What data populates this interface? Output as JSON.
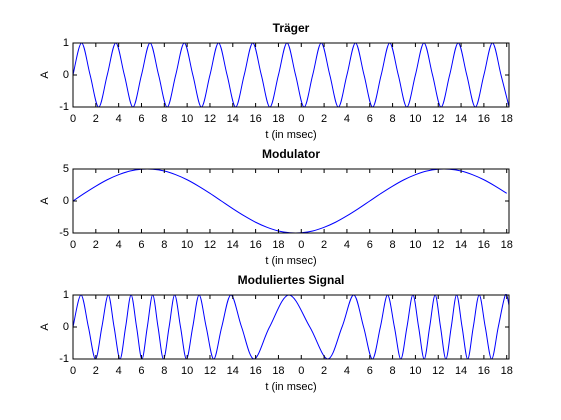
{
  "chart_data": [
    {
      "type": "line",
      "title": "Träger",
      "xlabel": "t (in msec)",
      "ylabel": "A",
      "color": "#0000ff",
      "x": [
        0,
        0.75,
        1.5,
        2.25,
        3,
        3.75,
        4.5,
        5.25,
        6,
        6.75,
        7.5,
        8.25,
        9,
        9.75,
        10.5,
        11.25,
        12,
        12.75,
        13.5,
        14.25,
        15,
        15.75,
        16.5,
        17.25,
        18,
        18.75,
        19.5,
        20.25,
        21,
        21.75,
        22.5,
        23.25,
        24,
        24.75,
        25.5,
        26.25,
        27,
        27.75,
        28.5,
        29.25,
        30,
        30.75,
        31.5,
        32.25,
        33,
        33.75,
        34.5,
        35.25,
        36,
        36.75,
        37.5,
        38.2
      ],
      "values": [
        0,
        1,
        0,
        -1,
        0,
        1,
        0,
        -1,
        0,
        1,
        0,
        -1,
        0,
        1,
        0,
        -1,
        0,
        1,
        0,
        -1,
        0,
        1,
        0,
        -1,
        0,
        1,
        0,
        -1,
        0,
        1,
        0,
        -1,
        0,
        1,
        0,
        -1,
        0,
        1,
        0,
        -1,
        0,
        1,
        0,
        -1,
        0,
        1,
        0,
        -1,
        0,
        1,
        0,
        -0.99
      ],
      "xlim": [
        0,
        38.2
      ],
      "ylim": [
        -1,
        1
      ],
      "yticks": [
        -1,
        0,
        1
      ],
      "xticks": [
        0,
        2,
        4,
        6,
        8,
        10,
        12,
        14,
        16,
        18,
        {
          "value": 20,
          "label": "0"
        },
        {
          "value": 22,
          "label": "2"
        },
        {
          "value": 24,
          "label": "4"
        },
        {
          "value": 26,
          "label": "6"
        },
        {
          "value": 28,
          "label": "8"
        },
        {
          "value": 30,
          "label": "10"
        },
        {
          "value": 32,
          "label": "12"
        },
        {
          "value": 34,
          "label": "14"
        },
        {
          "value": 36,
          "label": "16"
        },
        {
          "value": 38,
          "label": "18"
        }
      ]
    },
    {
      "type": "line",
      "title": "Modulator",
      "xlabel": "t (in msec)",
      "ylabel": "A",
      "color": "#0000ff",
      "x": [
        0,
        1,
        2,
        3,
        4,
        5,
        6,
        7,
        8,
        9,
        10,
        11,
        12,
        13,
        14,
        15,
        16,
        17,
        18,
        19,
        20,
        21,
        22,
        23,
        24,
        25,
        26,
        27,
        28,
        29,
        30,
        31,
        32,
        33,
        34,
        35,
        36,
        37,
        38
      ],
      "values": [
        0,
        1.2,
        2.32,
        3.32,
        4.11,
        4.68,
        4.96,
        4.96,
        4.68,
        4.11,
        3.32,
        2.32,
        1.2,
        0,
        -1.2,
        -2.32,
        -3.32,
        -4.11,
        -4.68,
        -4.96,
        -4.96,
        -4.68,
        -4.11,
        -3.32,
        -2.32,
        -1.2,
        0,
        1.2,
        2.32,
        3.32,
        4.11,
        4.68,
        4.96,
        4.96,
        4.68,
        4.11,
        3.32,
        2.32,
        1.2
      ],
      "xlim": [
        0,
        38.2
      ],
      "ylim": [
        -5,
        5
      ],
      "yticks": [
        -5,
        0,
        5
      ],
      "xticks": [
        0,
        2,
        4,
        6,
        8,
        10,
        12,
        14,
        16,
        18,
        {
          "value": 20,
          "label": "0"
        },
        {
          "value": 22,
          "label": "2"
        },
        {
          "value": 24,
          "label": "4"
        },
        {
          "value": 26,
          "label": "6"
        },
        {
          "value": 28,
          "label": "8"
        },
        {
          "value": 30,
          "label": "10"
        },
        {
          "value": 32,
          "label": "12"
        },
        {
          "value": 34,
          "label": "14"
        },
        {
          "value": 36,
          "label": "16"
        },
        {
          "value": 38,
          "label": "18"
        }
      ]
    },
    {
      "type": "line",
      "title": "Moduliertes Signal",
      "xlabel": "t (in msec)",
      "ylabel": "A",
      "color": "#0000ff",
      "x": [
        0,
        0.7,
        1.35,
        1.97,
        2.53,
        3.09,
        3.6,
        4.12,
        4.61,
        5.09,
        5.57,
        6.04,
        6.51,
        6.98,
        7.45,
        7.93,
        8.42,
        8.91,
        9.42,
        9.94,
        10.49,
        11.05,
        11.67,
        12.33,
        13.03,
        13.84,
        14.77,
        15.86,
        17.22,
        18.92,
        20.75,
        22.32,
        23.57,
        24.59,
        25.46,
        26.23,
        26.93,
        27.56,
        28.16,
        28.72,
        29.26,
        29.78,
        30.28,
        30.77,
        31.25,
        31.73,
        32.2,
        32.67,
        33.14,
        33.61,
        34.09,
        34.58,
        35.07,
        35.59,
        36.12,
        36.68,
        37.26,
        37.88,
        38.2
      ],
      "values": [
        0,
        1,
        0,
        -1,
        0,
        1,
        0,
        -1,
        0,
        1,
        0,
        -1,
        0,
        1,
        0,
        -1,
        0,
        1,
        0,
        -1,
        0,
        1,
        0,
        -1,
        0,
        1,
        0,
        -1,
        0,
        1,
        0,
        -1,
        0,
        1,
        0,
        -1,
        0,
        1,
        0,
        -1,
        0,
        1,
        0,
        -1,
        0,
        1,
        0,
        -1,
        0,
        1,
        0,
        -1,
        0,
        1,
        0,
        -1,
        0,
        1,
        0.68
      ],
      "xlim": [
        0,
        38.2
      ],
      "ylim": [
        -1,
        1
      ],
      "yticks": [
        -1,
        0,
        1
      ],
      "xticks": [
        0,
        2,
        4,
        6,
        8,
        10,
        12,
        14,
        16,
        18,
        {
          "value": 20,
          "label": "0"
        },
        {
          "value": 22,
          "label": "2"
        },
        {
          "value": 24,
          "label": "4"
        },
        {
          "value": 26,
          "label": "6"
        },
        {
          "value": 28,
          "label": "8"
        },
        {
          "value": 30,
          "label": "10"
        },
        {
          "value": 32,
          "label": "12"
        },
        {
          "value": 34,
          "label": "14"
        },
        {
          "value": 36,
          "label": "16"
        },
        {
          "value": 38,
          "label": "18"
        }
      ]
    }
  ]
}
